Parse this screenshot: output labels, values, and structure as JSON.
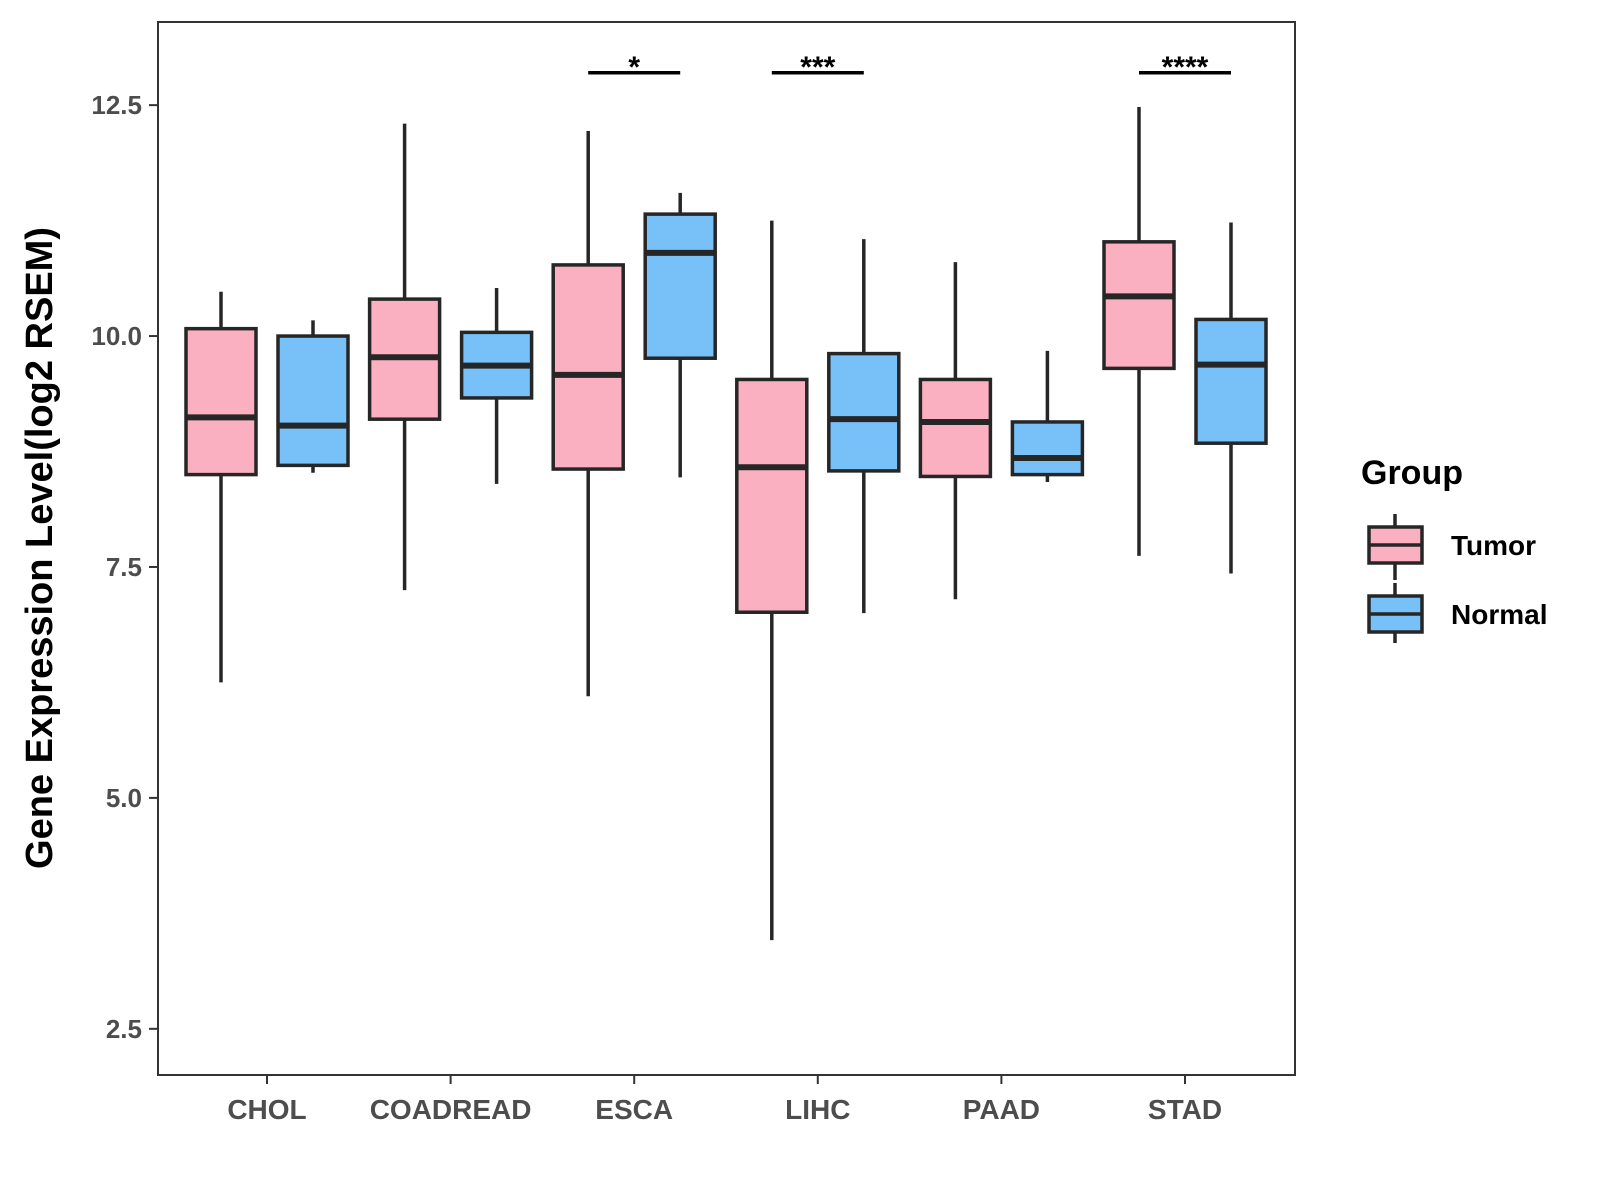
{
  "chart_data": {
    "type": "boxplot",
    "ylabel": "Gene Expression Level(log2 RSEM)",
    "xlabel": "",
    "ylim": [
      2.0,
      13.4
    ],
    "yticks": [
      2.5,
      5.0,
      7.5,
      10.0,
      12.5
    ],
    "ytick_labels": [
      "2.5",
      "5.0",
      "7.5",
      "10.0",
      "12.5"
    ],
    "categories": [
      "CHOL",
      "COADREAD",
      "ESCA",
      "LIHC",
      "PAAD",
      "STAD"
    ],
    "legend": {
      "title": "Group",
      "position": "right",
      "entries": [
        {
          "name": "Tumor",
          "color": "#fab0c1"
        },
        {
          "name": "Normal",
          "color": "#77c0f8"
        }
      ]
    },
    "series": [
      {
        "name": "Tumor",
        "color": "#fab0c1",
        "boxes": [
          {
            "whisker_low": 6.25,
            "q1": 8.5,
            "median": 9.12,
            "q3": 10.08,
            "whisker_high": 10.48
          },
          {
            "whisker_low": 7.25,
            "q1": 9.1,
            "median": 9.77,
            "q3": 10.4,
            "whisker_high": 12.3
          },
          {
            "whisker_low": 6.1,
            "q1": 8.56,
            "median": 9.58,
            "q3": 10.77,
            "whisker_high": 12.22
          },
          {
            "whisker_low": 3.46,
            "q1": 7.01,
            "median": 8.58,
            "q3": 9.53,
            "whisker_high": 11.25
          },
          {
            "whisker_low": 7.15,
            "q1": 8.48,
            "median": 9.07,
            "q3": 9.53,
            "whisker_high": 10.8
          },
          {
            "whisker_low": 7.62,
            "q1": 9.65,
            "median": 10.43,
            "q3": 11.02,
            "whisker_high": 12.48
          }
        ]
      },
      {
        "name": "Normal",
        "color": "#77c0f8",
        "boxes": [
          {
            "whisker_low": 8.52,
            "q1": 8.6,
            "median": 9.03,
            "q3": 10.0,
            "whisker_high": 10.17
          },
          {
            "whisker_low": 8.4,
            "q1": 9.33,
            "median": 9.68,
            "q3": 10.04,
            "whisker_high": 10.52
          },
          {
            "whisker_low": 8.47,
            "q1": 9.76,
            "median": 10.9,
            "q3": 11.32,
            "whisker_high": 11.55
          },
          {
            "whisker_low": 7.0,
            "q1": 8.54,
            "median": 9.1,
            "q3": 9.81,
            "whisker_high": 11.05
          },
          {
            "whisker_low": 8.42,
            "q1": 8.5,
            "median": 8.68,
            "q3": 9.07,
            "whisker_high": 9.84
          },
          {
            "whisker_low": 7.43,
            "q1": 8.84,
            "median": 9.69,
            "q3": 10.18,
            "whisker_high": 11.23
          }
        ]
      }
    ],
    "annotations": [
      {
        "category": "ESCA",
        "label": "*",
        "y": 12.85
      },
      {
        "category": "LIHC",
        "label": "***",
        "y": 12.85
      },
      {
        "category": "STAD",
        "label": "****",
        "y": 12.85
      }
    ]
  }
}
